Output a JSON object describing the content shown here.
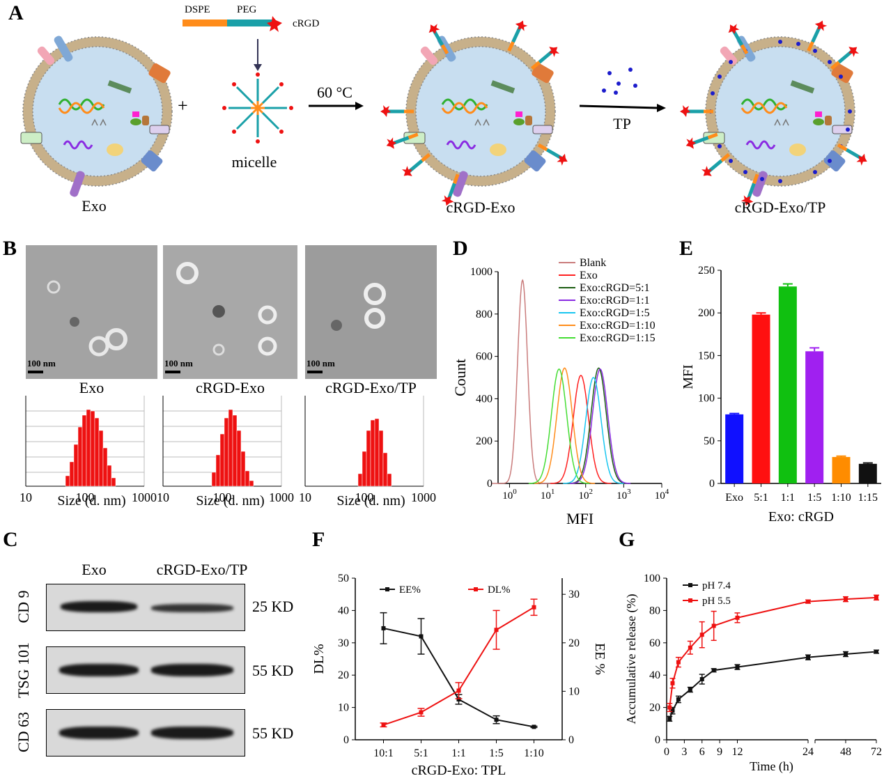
{
  "panelA": {
    "label": "A",
    "dspe": "DSPE",
    "peg": "PEG",
    "crgd": "cRGD",
    "plus": "+",
    "micelle": "micelle",
    "temp": "60 °C",
    "tp": "TP",
    "exo": "Exo",
    "crgd_exo": "cRGD-Exo",
    "crgd_exo_tp": "cRGD-Exo/TP"
  },
  "panelB": {
    "label": "B",
    "scale": "100 nm",
    "images": [
      "Exo",
      "cRGD-Exo",
      "cRGD-Exo/TP"
    ],
    "x_ticks": [
      "10",
      "100",
      "1000"
    ],
    "xlabel": "Size (d. nm)"
  },
  "panelC": {
    "label": "C",
    "lanes": [
      "Exo",
      "cRGD-Exo/TP"
    ],
    "proteins": [
      {
        "name": "CD 9",
        "kd": "25 KD"
      },
      {
        "name": "TSG 101",
        "kd": "55 KD"
      },
      {
        "name": "CD 63",
        "kd": "55 KD"
      }
    ]
  },
  "chart_data": [
    {
      "id": "D",
      "type": "line",
      "title": "",
      "xlabel": "MFI",
      "ylabel": "Count",
      "xscale": "log",
      "xlim": [
        0.5,
        10000
      ],
      "ylim": [
        0,
        1000
      ],
      "yticks": [
        "0",
        "200",
        "400",
        "600",
        "800",
        "1000"
      ],
      "xticks": [
        "10^0",
        "10^1",
        "10^2",
        "10^3",
        "10^4"
      ],
      "series": [
        {
          "name": "Blank",
          "color": "#c97b7b",
          "peak_x": 2.2,
          "peak_y": 960
        },
        {
          "name": "Exo",
          "color": "#ff2020",
          "peak_x": 75,
          "peak_y": 510
        },
        {
          "name": "Exo:cRGD=5:1",
          "color": "#1a5c10",
          "peak_x": 220,
          "peak_y": 545
        },
        {
          "name": "Exo:cRGD=1:1",
          "color": "#8a2be2",
          "peak_x": 240,
          "peak_y": 540
        },
        {
          "name": "Exo:cRGD=1:5",
          "color": "#18c6f0",
          "peak_x": 160,
          "peak_y": 500
        },
        {
          "name": "Exo:cRGD=1:10",
          "color": "#ff8c1a",
          "peak_x": 28,
          "peak_y": 545
        },
        {
          "name": "Exo:cRGD=1:15",
          "color": "#44dd33",
          "peak_x": 20,
          "peak_y": 540
        }
      ]
    },
    {
      "id": "E",
      "type": "bar",
      "xlabel": "Exo: cRGD",
      "ylabel": "MFI",
      "ylim": [
        0,
        250
      ],
      "yticks": [
        "0",
        "50",
        "100",
        "150",
        "200",
        "250"
      ],
      "categories": [
        "Exo",
        "5:1",
        "1:1",
        "1:5",
        "1:10",
        "1:15"
      ],
      "values": [
        81,
        198,
        231,
        155,
        31,
        23
      ],
      "errors": [
        1,
        2,
        3,
        4,
        1,
        1
      ],
      "colors": [
        "#1010ff",
        "#ff1010",
        "#10c010",
        "#a020f0",
        "#ff8c00",
        "#111111"
      ]
    },
    {
      "id": "F",
      "type": "line",
      "xlabel": "cRGD-Exo: TPL",
      "ylabel": "DL%",
      "y2label": "EE %",
      "categories": [
        "10:1",
        "5:1",
        "1:1",
        "1:5",
        "1:10"
      ],
      "ylim": [
        0,
        50
      ],
      "yticks": [
        "0",
        "10",
        "20",
        "30",
        "40",
        "50"
      ],
      "y2lim": [
        0,
        33.33
      ],
      "y2ticks": [
        "0",
        "10",
        "20",
        "30"
      ],
      "series": [
        {
          "name": "EE%",
          "color": "#111111",
          "axis": "left",
          "values": [
            34.5,
            32,
            12.5,
            6.2,
            4.0
          ],
          "errors": [
            4.8,
            5.5,
            1.5,
            1.2,
            0.2
          ]
        },
        {
          "name": "DL%",
          "color": "#ee1111",
          "axis": "left",
          "values": [
            4.6,
            8.5,
            15.2,
            34,
            41
          ],
          "errors": [
            0.6,
            1.2,
            2.5,
            6,
            2.5
          ]
        }
      ]
    },
    {
      "id": "G",
      "type": "line",
      "xlabel": "Time (h)",
      "ylabel": "Accumulative release (%)",
      "ylim": [
        0,
        100
      ],
      "yticks": [
        "0",
        "20",
        "40",
        "60",
        "80",
        "100"
      ],
      "xticks": [
        "0",
        "3",
        "6",
        "9",
        "12",
        "24",
        "48",
        "72"
      ],
      "series": [
        {
          "name": "pH 7.4",
          "color": "#111111",
          "x": [
            0.5,
            1,
            2,
            4,
            6,
            8,
            12,
            24,
            48,
            72
          ],
          "values": [
            13,
            18,
            25,
            31,
            37.5,
            43,
            45,
            51,
            53,
            54.5
          ],
          "errors": [
            1.5,
            2,
            2,
            1.5,
            3,
            1,
            1.5,
            1.5,
            1.5,
            1
          ]
        },
        {
          "name": "pH 5.5",
          "color": "#ee1111",
          "x": [
            0.5,
            1,
            2,
            4,
            6,
            8,
            12,
            24,
            48,
            72
          ],
          "values": [
            20,
            35,
            48,
            57,
            65,
            70.5,
            75.5,
            85.5,
            87,
            88
          ],
          "errors": [
            2.5,
            3,
            3,
            4,
            8,
            9,
            3,
            1,
            1.5,
            1.5
          ]
        }
      ]
    }
  ]
}
